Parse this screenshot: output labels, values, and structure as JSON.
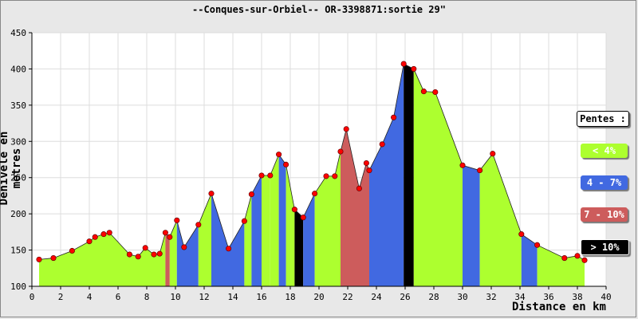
{
  "chart_data": {
    "type": "area",
    "title": "--Conques-sur-Orbiel-- OR-3398871:sortie 29\"",
    "xlabel": "Distance en km",
    "ylabel": "Dénivelé en metres",
    "xlim": [
      0,
      40
    ],
    "ylim": [
      100,
      450
    ],
    "xticks": [
      "0",
      "2",
      "4",
      "6",
      "8",
      "10",
      "12",
      "14",
      "16",
      "18",
      "20",
      "22",
      "24",
      "26",
      "28",
      "30",
      "32",
      "34",
      "36",
      "38",
      "40"
    ],
    "yticks": [
      "100",
      "150",
      "200",
      "250",
      "300",
      "350",
      "400",
      "450"
    ],
    "grid": true,
    "legend_placement": "right",
    "legend": {
      "title": "Pentes :",
      "items": [
        {
          "label": "< 4%",
          "color": "#adff2f",
          "text_color": "#ffffff"
        },
        {
          "label": "4 - 7%",
          "color": "#4169e1",
          "text_color": "#ffffff"
        },
        {
          "label": "7 - 10%",
          "color": "#cd5c5c",
          "text_color": "#ffffff"
        },
        {
          "label": "> 10%",
          "color": "#000000",
          "text_color": "#ffffff"
        }
      ]
    },
    "points": [
      {
        "x": 0.5,
        "y": 137
      },
      {
        "x": 1.5,
        "y": 139
      },
      {
        "x": 2.8,
        "y": 149
      },
      {
        "x": 4.0,
        "y": 162
      },
      {
        "x": 4.4,
        "y": 168
      },
      {
        "x": 5.0,
        "y": 172
      },
      {
        "x": 5.4,
        "y": 174
      },
      {
        "x": 6.8,
        "y": 144
      },
      {
        "x": 7.4,
        "y": 141
      },
      {
        "x": 7.9,
        "y": 153
      },
      {
        "x": 8.5,
        "y": 144
      },
      {
        "x": 8.9,
        "y": 145
      },
      {
        "x": 9.3,
        "y": 174
      },
      {
        "x": 9.6,
        "y": 168
      },
      {
        "x": 10.1,
        "y": 191
      },
      {
        "x": 10.6,
        "y": 154
      },
      {
        "x": 11.6,
        "y": 185
      },
      {
        "x": 12.5,
        "y": 228
      },
      {
        "x": 13.7,
        "y": 152
      },
      {
        "x": 14.8,
        "y": 190
      },
      {
        "x": 15.3,
        "y": 227
      },
      {
        "x": 16.0,
        "y": 253
      },
      {
        "x": 16.6,
        "y": 253
      },
      {
        "x": 17.2,
        "y": 282
      },
      {
        "x": 17.7,
        "y": 268
      },
      {
        "x": 18.3,
        "y": 206
      },
      {
        "x": 18.9,
        "y": 195
      },
      {
        "x": 19.7,
        "y": 228
      },
      {
        "x": 20.5,
        "y": 252
      },
      {
        "x": 21.1,
        "y": 252
      },
      {
        "x": 21.5,
        "y": 286
      },
      {
        "x": 21.9,
        "y": 317
      },
      {
        "x": 22.8,
        "y": 235
      },
      {
        "x": 23.3,
        "y": 270
      },
      {
        "x": 23.5,
        "y": 260
      },
      {
        "x": 24.4,
        "y": 296
      },
      {
        "x": 25.2,
        "y": 333
      },
      {
        "x": 25.9,
        "y": 407
      },
      {
        "x": 26.6,
        "y": 400
      },
      {
        "x": 27.3,
        "y": 369
      },
      {
        "x": 28.1,
        "y": 368
      },
      {
        "x": 30.0,
        "y": 267
      },
      {
        "x": 31.2,
        "y": 260
      },
      {
        "x": 32.1,
        "y": 283
      },
      {
        "x": 34.1,
        "y": 172
      },
      {
        "x": 35.2,
        "y": 157
      },
      {
        "x": 37.1,
        "y": 139
      },
      {
        "x": 38.0,
        "y": 142
      },
      {
        "x": 38.5,
        "y": 136
      }
    ],
    "segments": [
      {
        "from": 0.5,
        "to": 9.3,
        "slope_class": "< 4%"
      },
      {
        "from": 9.3,
        "to": 9.6,
        "slope_class": "7 - 10%"
      },
      {
        "from": 9.6,
        "to": 10.1,
        "slope_class": "< 4%"
      },
      {
        "from": 10.1,
        "to": 11.6,
        "slope_class": "4 - 7%"
      },
      {
        "from": 11.6,
        "to": 12.5,
        "slope_class": "< 4%"
      },
      {
        "from": 12.5,
        "to": 14.8,
        "slope_class": "4 - 7%"
      },
      {
        "from": 14.8,
        "to": 15.3,
        "slope_class": "< 4%"
      },
      {
        "from": 15.3,
        "to": 16.0,
        "slope_class": "4 - 7%"
      },
      {
        "from": 16.0,
        "to": 16.6,
        "slope_class": "< 4%"
      },
      {
        "from": 16.6,
        "to": 17.2,
        "slope_class": "< 4%"
      },
      {
        "from": 17.2,
        "to": 17.7,
        "slope_class": "4 - 7%"
      },
      {
        "from": 17.7,
        "to": 18.3,
        "slope_class": "< 4%"
      },
      {
        "from": 18.3,
        "to": 18.9,
        "slope_class": "> 10%"
      },
      {
        "from": 18.9,
        "to": 19.7,
        "slope_class": "4 - 7%"
      },
      {
        "from": 19.7,
        "to": 20.5,
        "slope_class": "< 4%"
      },
      {
        "from": 20.5,
        "to": 21.5,
        "slope_class": "< 4%"
      },
      {
        "from": 21.5,
        "to": 23.5,
        "slope_class": "7 - 10%"
      },
      {
        "from": 23.5,
        "to": 25.9,
        "slope_class": "4 - 7%"
      },
      {
        "from": 25.9,
        "to": 26.6,
        "slope_class": "> 10%"
      },
      {
        "from": 26.6,
        "to": 30.0,
        "slope_class": "< 4%"
      },
      {
        "from": 30.0,
        "to": 31.2,
        "slope_class": "4 - 7%"
      },
      {
        "from": 31.2,
        "to": 34.1,
        "slope_class": "< 4%"
      },
      {
        "from": 34.1,
        "to": 35.2,
        "slope_class": "4 - 7%"
      },
      {
        "from": 35.2,
        "to": 38.5,
        "slope_class": "< 4%"
      }
    ]
  }
}
